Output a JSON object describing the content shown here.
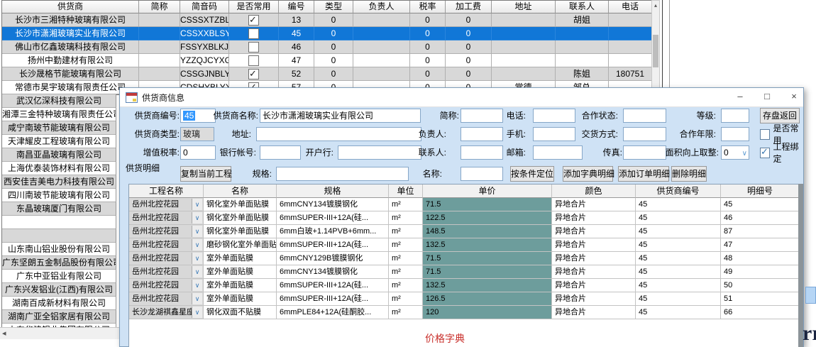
{
  "glyphs": {
    "scroll_up": "▴",
    "scroll_left": "◂",
    "combo_arrow": "∨",
    "minimize": "–",
    "maximize": "□",
    "close": "×"
  },
  "main_table": {
    "columns": [
      "供货商",
      "简称",
      "简音码",
      "是否常用",
      "编号",
      "类型",
      "负责人",
      "税率",
      "加工费",
      "地址",
      "联系人",
      "电话"
    ],
    "rows": [
      {
        "name": "长沙市三湘特种玻璃有限公司",
        "abbr": "",
        "code": "CSSSXTZBL...",
        "common": true,
        "id": "13",
        "type": "0",
        "leader": "",
        "tax": "0",
        "fee": "0",
        "address": "",
        "contact": "胡姐",
        "phone": "",
        "selected": false
      },
      {
        "name": "长沙市潇湘玻璃实业有限公司",
        "abbr": "",
        "code": "CSSXXBLSY...",
        "common": false,
        "id": "45",
        "type": "0",
        "leader": "",
        "tax": "0",
        "fee": "0",
        "address": "",
        "contact": "",
        "phone": "",
        "selected": true
      },
      {
        "name": "佛山市亿鑫玻璃科技有限公司",
        "abbr": "",
        "code": "FSSYXBLKJ...",
        "common": false,
        "id": "46",
        "type": "0",
        "leader": "",
        "tax": "0",
        "fee": "0",
        "address": "",
        "contact": "",
        "phone": "",
        "selected": false
      },
      {
        "name": "扬州中勤建材有限公司",
        "abbr": "",
        "code": "YZZQJCYXGS",
        "common": false,
        "id": "47",
        "type": "0",
        "leader": "",
        "tax": "0",
        "fee": "0",
        "address": "",
        "contact": "",
        "phone": "",
        "selected": false
      },
      {
        "name": "长沙晟格节能玻璃有限公司",
        "abbr": "",
        "code": "CSSGJNBLYXGS",
        "common": true,
        "id": "52",
        "type": "0",
        "leader": "",
        "tax": "0",
        "fee": "0",
        "address": "",
        "contact": "陈姐",
        "phone": "180751",
        "selected": false
      },
      {
        "name": "常德市昊宇玻璃有限责任公司",
        "abbr": "",
        "code": "CDSHYBLYX",
        "common": true,
        "id": "57",
        "type": "0",
        "leader": "",
        "tax": "0",
        "fee": "0",
        "address": "常德",
        "contact": "邹总",
        "phone": "",
        "selected": false
      }
    ]
  },
  "left_list": [
    "武汉亿深科技有限公司",
    "湘潭三金特种玻璃有限责任公司",
    "咸宁南玻节能玻璃有限公司",
    "天津耀皮工程玻璃有限公司",
    "南昌亚晶玻璃有限公司",
    "上海优泰装饰材料有限公司",
    "西安佳吉美电力科技有限公司",
    "四川南玻节能玻璃有限公司",
    "东晶玻璃厦门有限公司",
    "",
    "",
    "山东南山铝业股份有限公司",
    "广东坚朗五金制品股份有限公司",
    "广东中亚铝业有限公司",
    "广东兴发铝业(江西)有限公司",
    "湖南百成新材料有限公司",
    "湖南广亚全铝家居有限公司",
    "山东华建铝业集团有限公司"
  ],
  "dialog": {
    "title": "供货商信息",
    "form": {
      "supplier_id_label": "供货商编号:",
      "supplier_id": "45",
      "supplier_name_label": "供货商名称:",
      "supplier_name": "长沙市潇湘玻璃实业有限公司",
      "abbr_label": "简称:",
      "abbr": "",
      "phone_label": "电话:",
      "phone": "",
      "coop_status_label": "合作状态:",
      "coop_status": "",
      "grade_label": "等级:",
      "grade": "",
      "save_button": "存盘返回",
      "type_label": "供货商类型:",
      "type": "玻璃",
      "address_label": "地址:",
      "address": "",
      "leader_label": "负责人:",
      "leader": "",
      "mobile_label": "手机:",
      "mobile": "",
      "delivery_label": "交货方式:",
      "delivery": "",
      "coop_years_label": "合作年限:",
      "coop_years": "",
      "common_checkbox_label": "是否常用",
      "common_checked": false,
      "vat_label": "增值税率:",
      "vat": "0",
      "bank_account_label": "银行帐号:",
      "bank_account": "",
      "bank_label": "开户行:",
      "bank": "",
      "contact_label": "联系人:",
      "contact": "",
      "email_label": "邮箱:",
      "email": "",
      "fax_label": "传真:",
      "fax": "",
      "round_up_label": "面积向上取整:",
      "round_up_value": "0",
      "bind_checkbox_label": "工程绑定",
      "bind_checked": true
    },
    "detail": {
      "section_label": "供货明细",
      "copy_button": "复制当前工程",
      "spec_label": "规格:",
      "spec": "",
      "name_label": "名称:",
      "name": "",
      "locate_button": "按条件定位",
      "add_dict_button": "添加字典明细",
      "add_order_button": "添加订单明细",
      "delete_button": "删除明细",
      "grid": {
        "columns": [
          "工程名称",
          "名称",
          "规格",
          "单位",
          "单价",
          "颜色",
          "供货商编号",
          "明细号"
        ],
        "rows": [
          [
            "岳州北控花园",
            "钢化室外单面贴膜",
            "6mmCNY134镀膜钢化",
            "m²",
            "71.5",
            "异地合片",
            "45",
            "45"
          ],
          [
            "岳州北控花园",
            "钢化室外单面贴膜",
            "6mmSUPER-III+12A(硅...",
            "m²",
            "122.5",
            "异地合片",
            "45",
            "46"
          ],
          [
            "岳州北控花园",
            "钢化室外单面贴膜",
            "6mm白玻+1.14PVB+6mm...",
            "m²",
            "148.5",
            "异地合片",
            "45",
            "87"
          ],
          [
            "岳州北控花园",
            "磨砂钢化室外单面贴膜",
            "6mmSUPER-III+12A(硅...",
            "m²",
            "132.5",
            "异地合片",
            "45",
            "47"
          ],
          [
            "岳州北控花园",
            "室外单面贴膜",
            "6mmCNY129B镀膜钢化",
            "m²",
            "71.5",
            "异地合片",
            "45",
            "48"
          ],
          [
            "岳州北控花园",
            "室外单面贴膜",
            "6mmCNY134镀膜钢化",
            "m²",
            "71.5",
            "异地合片",
            "45",
            "49"
          ],
          [
            "岳州北控花园",
            "室外单面贴膜",
            "6mmSUPER-III+12A(硅...",
            "m²",
            "132.5",
            "异地合片",
            "45",
            "50"
          ],
          [
            "岳州北控花园",
            "室外单面贴膜",
            "6mmSUPER-III+12A(硅...",
            "m²",
            "126.5",
            "异地合片",
            "45",
            "51"
          ],
          [
            "长沙龙湖祺鑫星座",
            "钢化双面不贴膜",
            "6mmPLE84+12A(硅酮胶...",
            "m²",
            "120",
            "异地合片",
            "45",
            "66"
          ]
        ]
      },
      "footer_label": "价格字典"
    }
  },
  "colors": {
    "selection_blue": "#1177d7",
    "price_column_teal": "#6d9d9c",
    "dialog_background": "#cfe2f5",
    "footer_red": "#c9302c"
  },
  "background_artifacts": {
    "corner_text": "rr"
  }
}
